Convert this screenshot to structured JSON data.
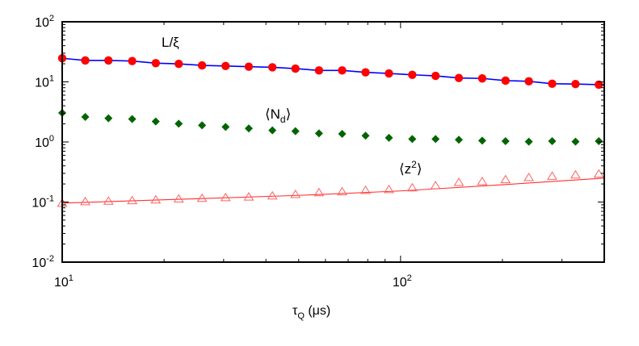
{
  "chart_data": {
    "type": "scatter",
    "title": "",
    "xlabel": "τ_Q (μs)",
    "ylabel": "",
    "xscale": "log",
    "yscale": "log",
    "xlim": [
      10,
      400
    ],
    "ylim": [
      0.01,
      100
    ],
    "grid": false,
    "x_ticks": [
      {
        "value": 10,
        "base": "10",
        "exp": "1"
      },
      {
        "value": 100,
        "base": "10",
        "exp": "2"
      }
    ],
    "y_ticks": [
      {
        "value": 100,
        "base": "10",
        "exp": "2"
      },
      {
        "value": 10,
        "base": "10",
        "exp": "1"
      },
      {
        "value": 1,
        "base": "10",
        "exp": "0"
      },
      {
        "value": 0.1,
        "base": "10",
        "exp": "-1"
      },
      {
        "value": 0.01,
        "base": "10",
        "exp": "-2"
      }
    ],
    "x": [
      10.0,
      11.7,
      13.7,
      16.1,
      18.9,
      22.1,
      25.9,
      30.4,
      35.6,
      41.8,
      48.9,
      57.4,
      67.2,
      78.8,
      92.4,
      108.3,
      126.9,
      148.7,
      174.3,
      204.3,
      239.4,
      280.6,
      328.9,
      385.4
    ],
    "series": [
      {
        "label": "L/ξ",
        "marker": "filled-circle",
        "color": "#ff0000",
        "line_color": "#0000ff",
        "values": [
          24.7,
          22.7,
          22.7,
          22.2,
          20.5,
          19.9,
          18.8,
          18.4,
          17.9,
          17.5,
          16.6,
          15.5,
          15.5,
          14.4,
          13.8,
          13.1,
          12.6,
          11.6,
          11.4,
          10.5,
          10.2,
          9.3,
          9.2,
          9.0
        ]
      },
      {
        "label": "⟨N_d⟩",
        "marker": "filled-diamond",
        "color": "#006400",
        "values": [
          3.04,
          2.61,
          2.48,
          2.4,
          2.19,
          2.01,
          1.89,
          1.78,
          1.68,
          1.56,
          1.51,
          1.39,
          1.36,
          1.27,
          1.17,
          1.12,
          1.12,
          1.09,
          1.05,
          1.03,
          1.01,
          1.03,
          1.01,
          1.03
        ]
      },
      {
        "label": "⟨z²⟩",
        "marker": "open-triangle",
        "color": "#ff6060",
        "line_color": "#ff3030",
        "values": [
          0.096,
          0.102,
          0.104,
          0.106,
          0.109,
          0.113,
          0.116,
          0.119,
          0.122,
          0.127,
          0.134,
          0.144,
          0.149,
          0.157,
          0.162,
          0.173,
          0.188,
          0.213,
          0.22,
          0.237,
          0.257,
          0.27,
          0.284,
          0.294
        ],
        "fit_line": [
          [
            10,
            0.096
          ],
          [
            20,
            0.109
          ],
          [
            50,
            0.129
          ],
          [
            100,
            0.153
          ],
          [
            200,
            0.194
          ],
          [
            400,
            0.25
          ]
        ]
      }
    ],
    "annotations": [
      {
        "name": "L/ξ",
        "text": "L/ξ"
      },
      {
        "name": "Nd",
        "pre": "⟨N",
        "sub": "d",
        "post": "⟩"
      },
      {
        "name": "z2",
        "pre": "⟨z",
        "sup": "2",
        "post": "⟩"
      }
    ]
  }
}
